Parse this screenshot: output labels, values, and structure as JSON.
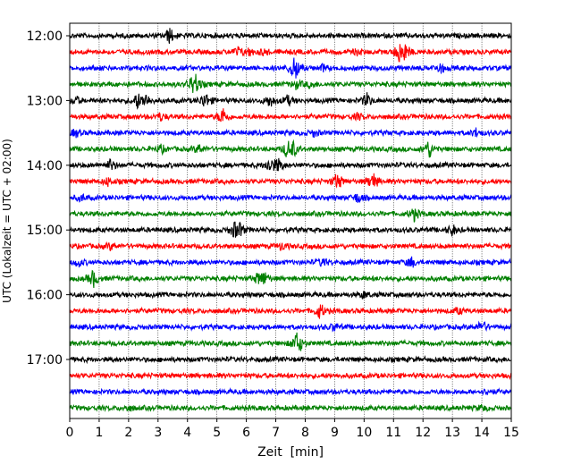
{
  "chart_data": {
    "type": "line",
    "title": "",
    "xlabel": "Zeit  [min]",
    "ylabel": "UTC (Lokalzeit = UTC + 02:00)",
    "xlim": [
      0,
      15
    ],
    "x_ticks": [
      "0",
      "1",
      "2",
      "3",
      "4",
      "5",
      "6",
      "7",
      "8",
      "9",
      "10",
      "11",
      "12",
      "13",
      "14",
      "15"
    ],
    "y_tick_labels": [
      "12:00",
      "13:00",
      "14:00",
      "15:00",
      "16:00",
      "17:00"
    ],
    "grid": "vertical dotted",
    "trace_colors": [
      "#000000",
      "#ff0000",
      "#0000ff",
      "#008000"
    ],
    "series": [
      {
        "start": "12:00",
        "events": [
          [
            3.4,
            1.2
          ]
        ]
      },
      {
        "start": "12:15",
        "events": [
          [
            5.7,
            0.7
          ],
          [
            6.1,
            0.6
          ],
          [
            6.6,
            0.5
          ],
          [
            9.8,
            0.5
          ],
          [
            11.2,
            1.4
          ],
          [
            11.4,
            1.2
          ]
        ]
      },
      {
        "start": "12:30",
        "events": [
          [
            7.6,
            1.4
          ],
          [
            7.7,
            1.0
          ],
          [
            8.6,
            0.5
          ],
          [
            12.6,
            0.8
          ]
        ]
      },
      {
        "start": "12:45",
        "events": [
          [
            4.2,
            1.3
          ],
          [
            4.3,
            0.9
          ],
          [
            7.7,
            0.6
          ],
          [
            8.2,
            0.5
          ]
        ]
      },
      {
        "start": "13:00",
        "events": [
          [
            0.2,
            0.6
          ],
          [
            2.3,
            1.2
          ],
          [
            2.6,
            1.0
          ],
          [
            4.6,
            1.4
          ],
          [
            6.8,
            1.0
          ],
          [
            7.4,
            0.8
          ],
          [
            10.1,
            1.1
          ]
        ]
      },
      {
        "start": "13:15",
        "events": [
          [
            3.1,
            0.6
          ],
          [
            5.2,
            1.5
          ],
          [
            9.8,
            0.5
          ]
        ]
      },
      {
        "start": "13:30",
        "events": [
          [
            0.2,
            0.6
          ],
          [
            8.3,
            0.5
          ],
          [
            13.8,
            0.6
          ]
        ]
      },
      {
        "start": "13:45",
        "events": [
          [
            3.1,
            0.6
          ],
          [
            4.4,
            0.7
          ],
          [
            7.4,
            1.3
          ],
          [
            7.6,
            1.0
          ],
          [
            12.2,
            1.5
          ]
        ]
      },
      {
        "start": "14:00",
        "events": [
          [
            1.4,
            0.9
          ],
          [
            6.8,
            1.2
          ],
          [
            7.1,
            1.0
          ]
        ]
      },
      {
        "start": "14:15",
        "events": [
          [
            1.3,
            0.6
          ],
          [
            9.1,
            1.4
          ],
          [
            10.3,
            1.5
          ]
        ]
      },
      {
        "start": "14:30",
        "events": [
          [
            0.4,
            0.5
          ],
          [
            9.8,
            0.8
          ]
        ]
      },
      {
        "start": "14:45",
        "events": [
          [
            11.7,
            1.0
          ]
        ]
      },
      {
        "start": "15:00",
        "events": [
          [
            5.6,
            1.2
          ],
          [
            5.8,
            0.8
          ],
          [
            13.0,
            0.9
          ]
        ]
      },
      {
        "start": "15:15",
        "events": [
          [
            1.4,
            0.5
          ],
          [
            7.2,
            0.6
          ]
        ]
      },
      {
        "start": "15:30",
        "events": [
          [
            0.3,
            0.6
          ],
          [
            8.6,
            0.7
          ],
          [
            11.6,
            0.8
          ]
        ]
      },
      {
        "start": "15:45",
        "events": [
          [
            0.8,
            1.4
          ],
          [
            6.6,
            1.0
          ],
          [
            6.4,
            0.7
          ]
        ]
      },
      {
        "start": "16:00",
        "events": [
          [
            10.0,
            0.5
          ]
        ]
      },
      {
        "start": "16:15",
        "events": [
          [
            8.5,
            1.3
          ],
          [
            13.2,
            0.5
          ]
        ]
      },
      {
        "start": "16:30",
        "events": [
          [
            9.0,
            0.6
          ],
          [
            14.0,
            1.0
          ]
        ]
      },
      {
        "start": "16:45",
        "events": [
          [
            7.7,
            1.3
          ],
          [
            7.8,
            0.8
          ]
        ]
      },
      {
        "start": "17:00",
        "events": []
      },
      {
        "start": "17:15",
        "events": []
      },
      {
        "start": "17:30",
        "events": [
          [
            14.2,
            0.4
          ]
        ]
      },
      {
        "start": "17:45",
        "events": [
          [
            2.0,
            0.4
          ],
          [
            14.0,
            0.4
          ]
        ]
      }
    ]
  }
}
